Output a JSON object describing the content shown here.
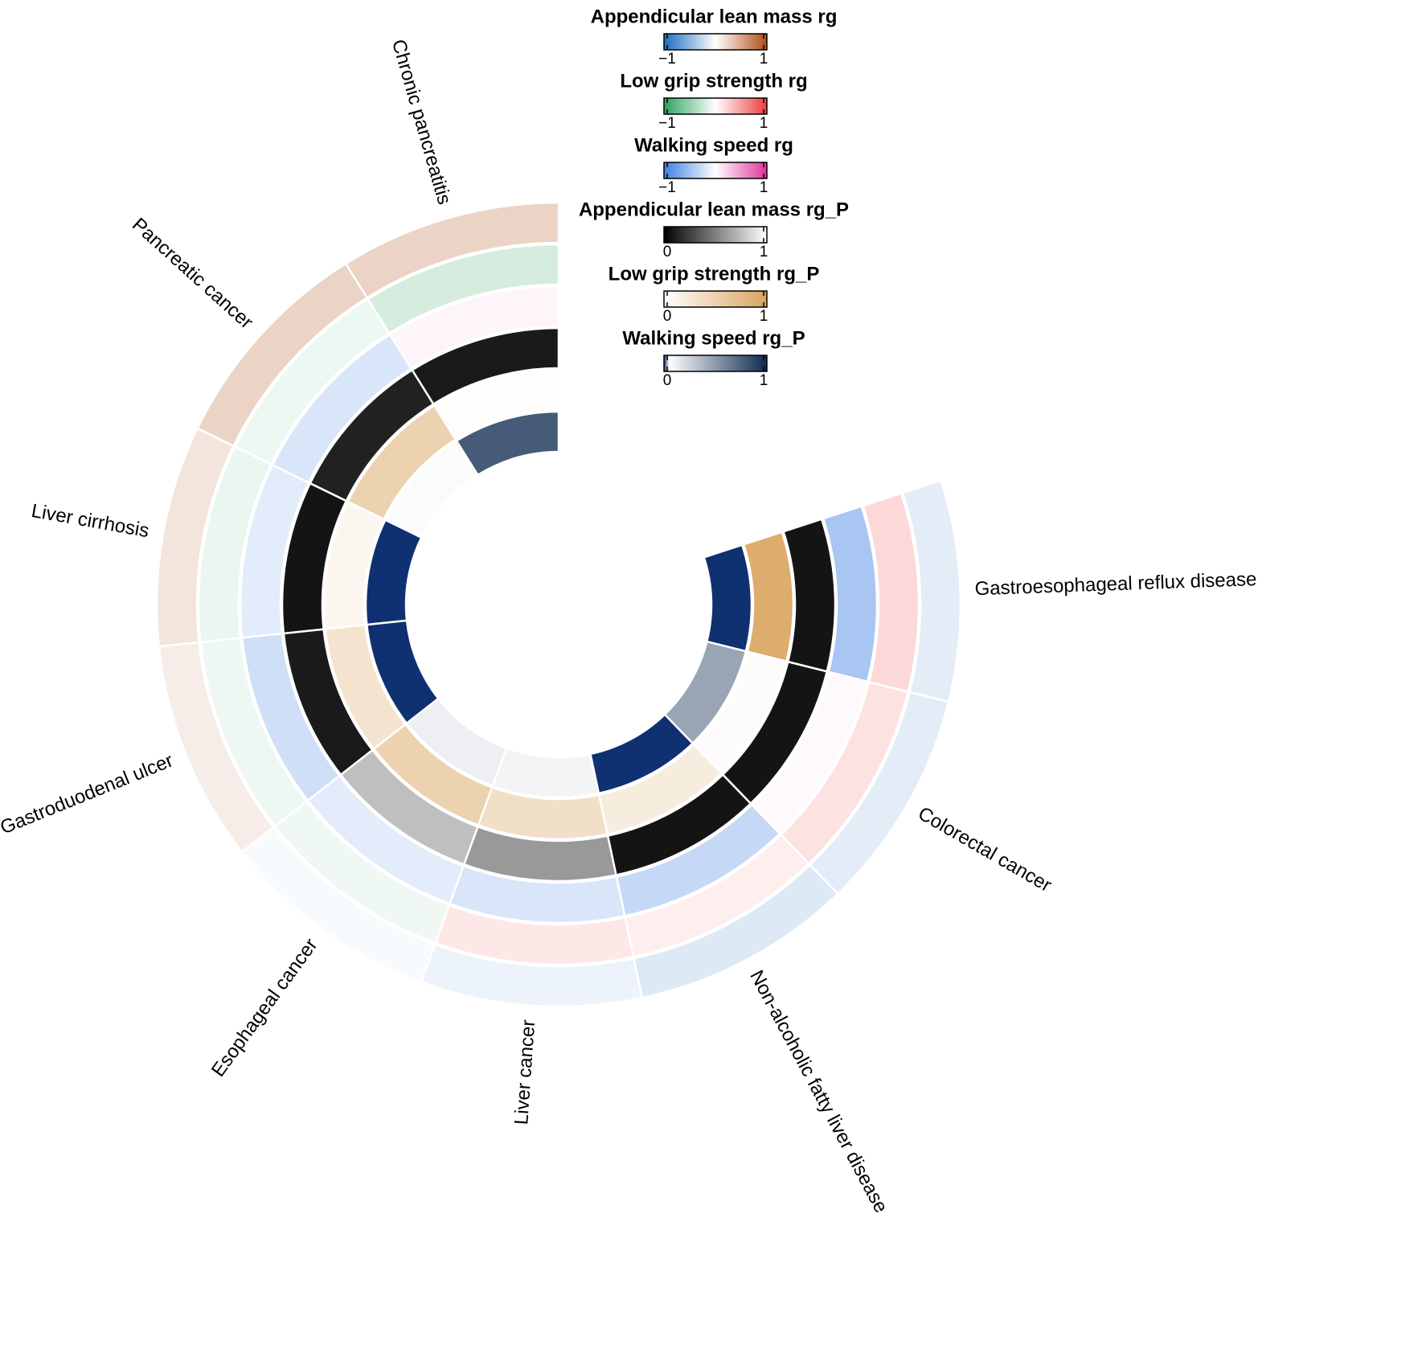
{
  "chart_data": {
    "type": "circular-heatmap",
    "categories": [
      "Chronic pancreatitis",
      "Pancreatic cancer",
      "Liver cirrhosis",
      "Gastroduodenal ulcer",
      "Esophageal cancer",
      "Liver cancer",
      "Non-alcoholic fatty liver disease",
      "Colorectal cancer",
      "Gastroesophageal reflux disease"
    ],
    "series": [
      {
        "name": "Appendicular lean mass rg",
        "lim": [
          -1,
          1
        ],
        "ticks": [
          {
            "value": -1,
            "label": "−1"
          },
          1
        ],
        "colorscale": [
          [
            -1,
            "#1c6cbf"
          ],
          [
            0,
            "#ffffff"
          ],
          [
            1,
            "#b04e16"
          ]
        ],
        "values": [
          0.25,
          0.25,
          0.15,
          0.1,
          -0.03,
          -0.08,
          -0.15,
          -0.12,
          -0.12
        ]
      },
      {
        "name": "Low grip strength rg",
        "lim": [
          -1,
          1
        ],
        "ticks": [
          {
            "value": -1,
            "label": "−1"
          },
          1
        ],
        "colorscale": [
          [
            -1,
            "#2ca25f"
          ],
          [
            0,
            "#ffffff"
          ],
          [
            1,
            "#f03b3b"
          ]
        ],
        "values": [
          -0.2,
          -0.08,
          -0.1,
          -0.08,
          -0.07,
          0.12,
          0.08,
          0.15,
          0.2
        ]
      },
      {
        "name": "Walking speed rg",
        "lim": [
          -1,
          1
        ],
        "ticks": [
          {
            "value": -1,
            "label": "−1"
          },
          1
        ],
        "colorscale": [
          [
            -1,
            "#3f7fe0"
          ],
          [
            0,
            "#ffffff"
          ],
          [
            1,
            "#e0339a"
          ]
        ],
        "values": [
          0.05,
          -0.2,
          -0.15,
          -0.25,
          -0.15,
          -0.2,
          -0.3,
          0.03,
          -0.45
        ]
      },
      {
        "name": "Appendicular lean mass rg_P",
        "lim": [
          0,
          1
        ],
        "ticks": [
          0,
          1
        ],
        "colorscale": [
          [
            0,
            "#000000"
          ],
          [
            1,
            "#ffffff"
          ]
        ],
        "values": [
          0.1,
          0.13,
          0.08,
          0.1,
          0.75,
          0.6,
          0.08,
          0.08,
          0.08
        ]
      },
      {
        "name": "Low grip strength rg_P",
        "lim": [
          0,
          1
        ],
        "ticks": [
          0,
          1
        ],
        "colorscale": [
          [
            0,
            "#ffffff"
          ],
          [
            1,
            "#d9a45e"
          ]
        ],
        "values": [
          0.02,
          0.5,
          0.1,
          0.3,
          0.5,
          0.35,
          0.2,
          0.03,
          0.9
        ]
      },
      {
        "name": "Walking speed rg_P",
        "lim": [
          0,
          1
        ],
        "ticks": [
          0,
          1
        ],
        "colorscale": [
          [
            0,
            "#0a2d6e"
          ],
          [
            0.05,
            "#ffffff"
          ],
          [
            1,
            "#0d2a4f"
          ]
        ],
        "values": [
          0.78,
          0.07,
          0.001,
          0.001,
          0.12,
          0.1,
          0.001,
          0.45,
          0.001
        ]
      }
    ]
  }
}
